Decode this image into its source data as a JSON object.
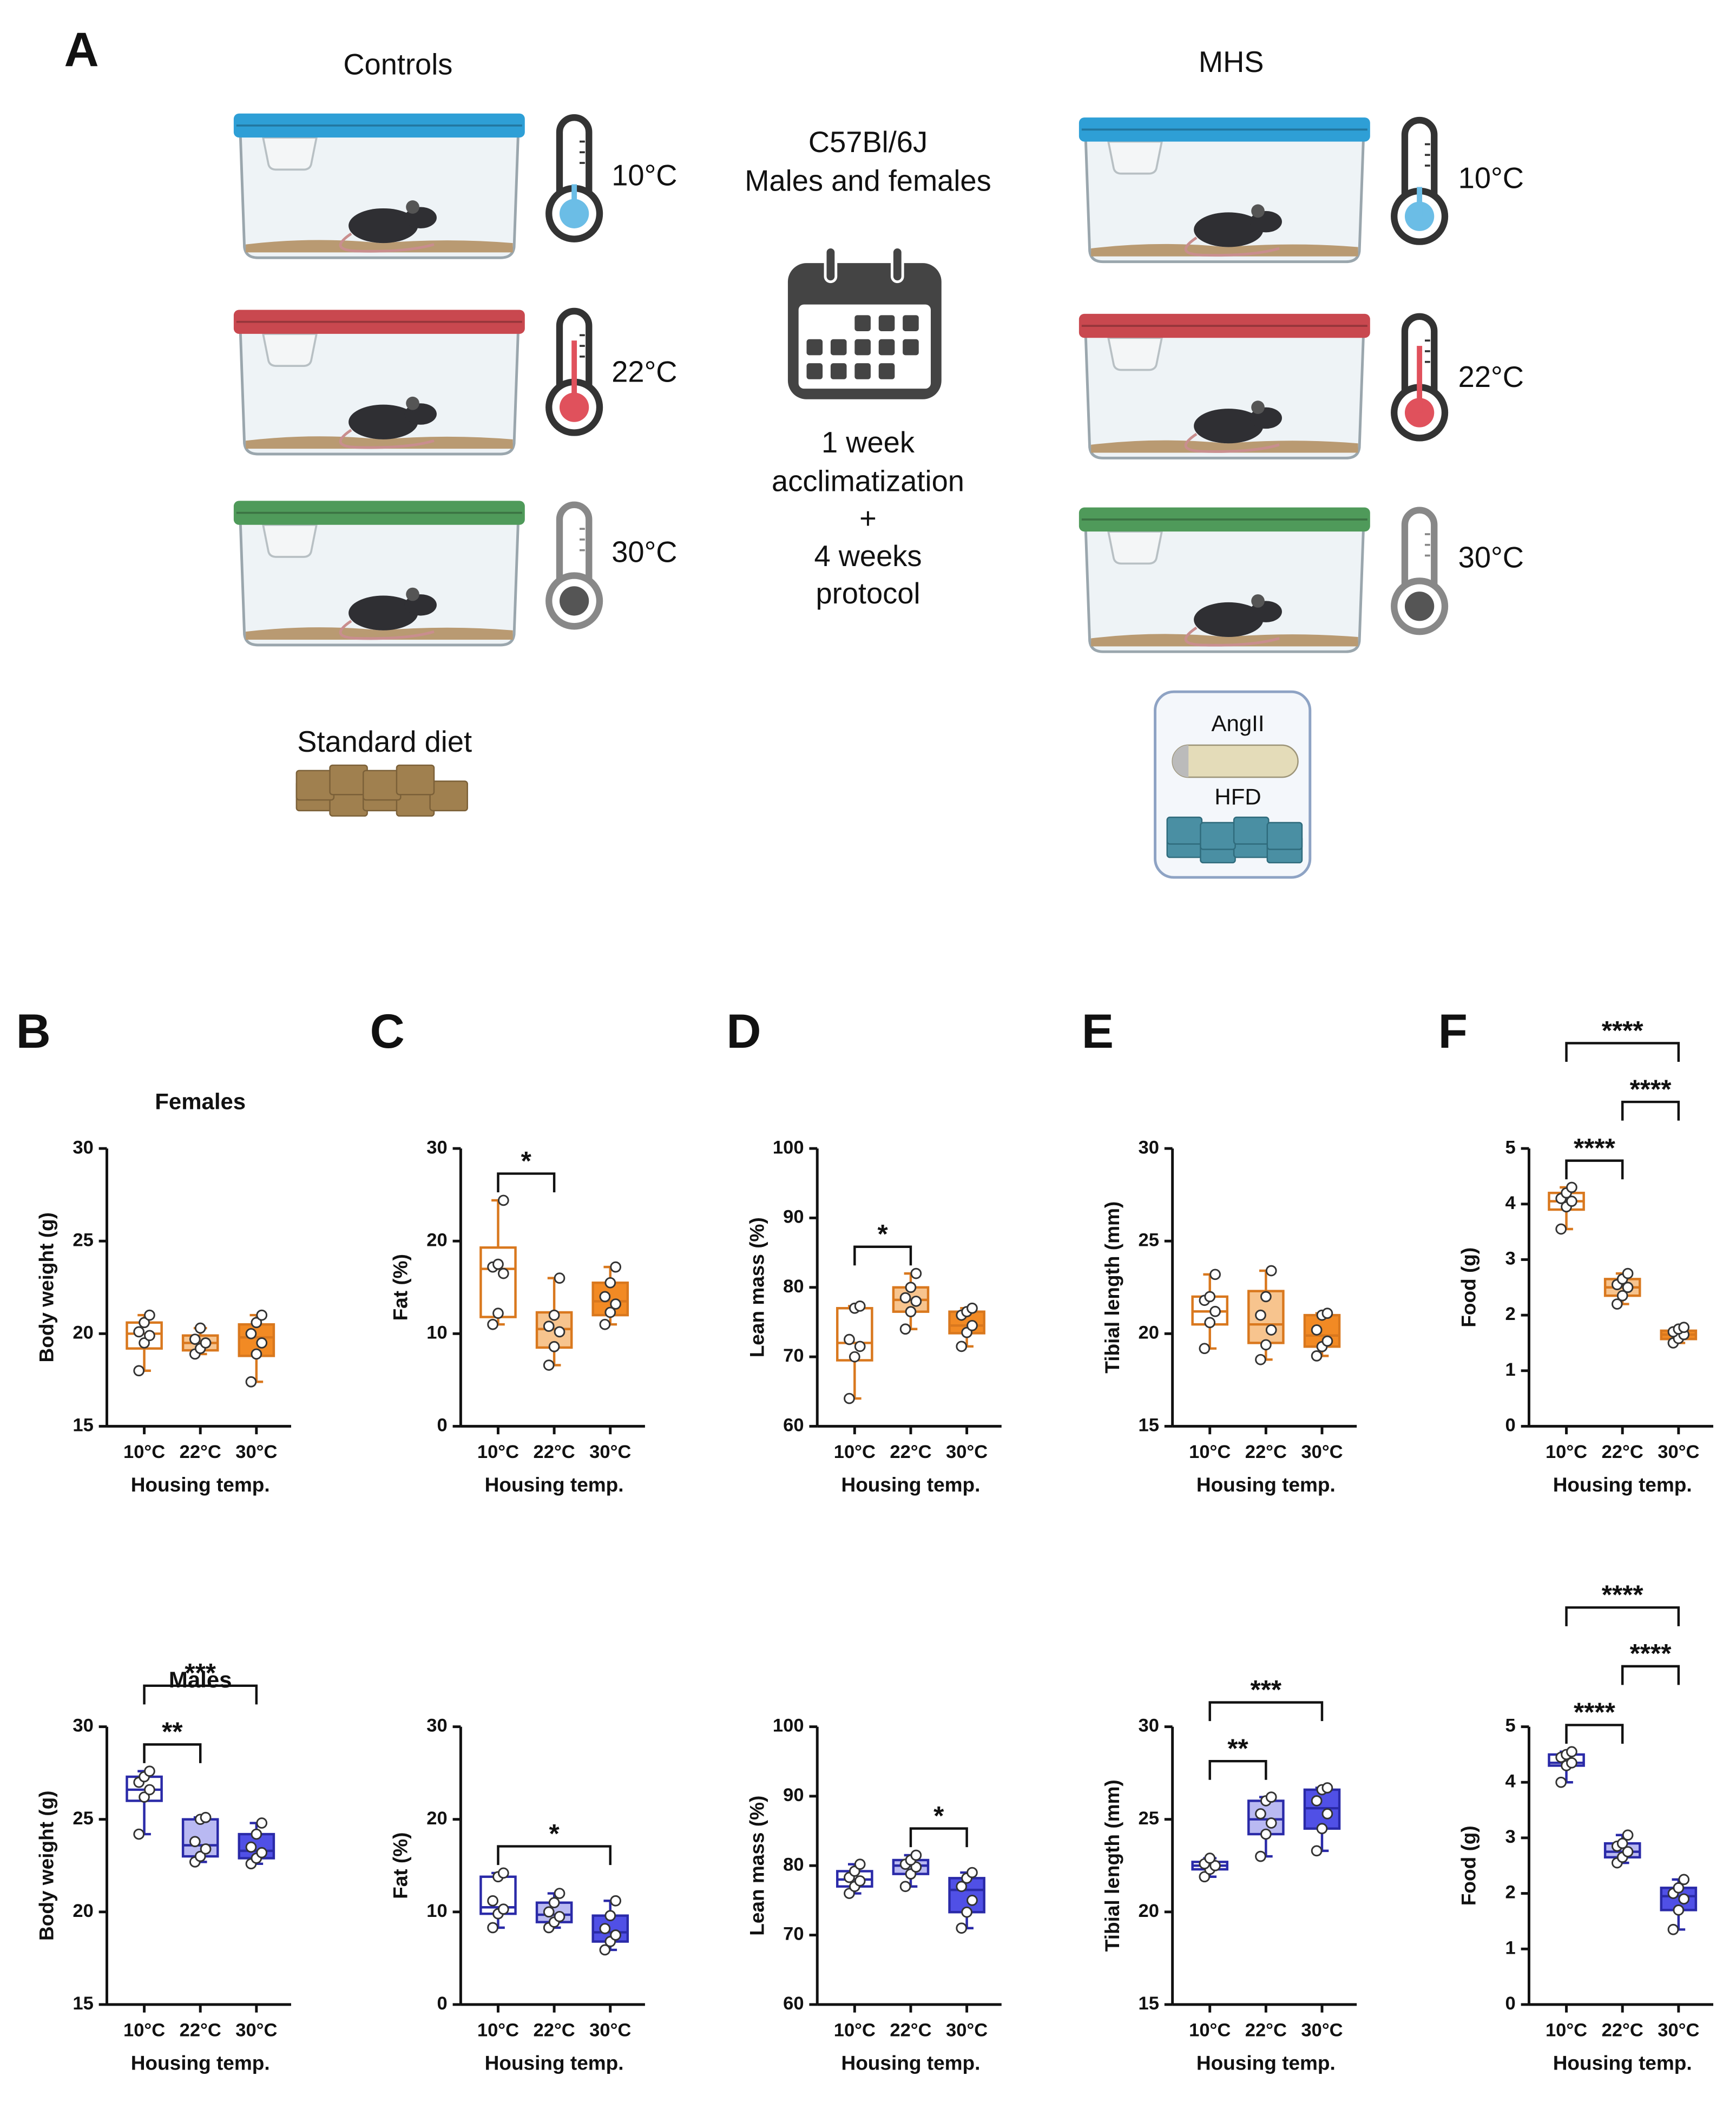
{
  "panel_a": {
    "label": "A",
    "controls": {
      "title": "Controls",
      "temperatures": [
        "10°C",
        "22°C",
        "30°C"
      ],
      "diet": "Standard diet"
    },
    "mhs": {
      "title": "MHS",
      "temperatures": [
        "10°C",
        "22°C",
        "30°C"
      ],
      "treatments": [
        "AngII",
        "HFD"
      ]
    },
    "protocol": {
      "strain": "C57Bl/6J",
      "sexes": "Males and females",
      "duration": [
        "1 week",
        "acclimatization",
        "+",
        "4 weeks",
        "protocol"
      ]
    }
  },
  "chart_data": [
    {
      "type": "box",
      "panel": "B",
      "title": "Females",
      "ylabel": "Body weight (g)",
      "xlabel": "Housing temp.",
      "categories": [
        "10°C",
        "22°C",
        "30°C"
      ],
      "ylim": [
        15,
        30
      ],
      "yticks": [
        15,
        20,
        25,
        30
      ],
      "boxes": [
        {
          "color": "#d9781e",
          "fill": "#ffffff",
          "min": 18,
          "q1": 19.2,
          "median": 20,
          "q3": 20.6,
          "max": 21,
          "points": [
            18,
            19.5,
            19.9,
            20.1,
            20.6,
            21
          ]
        },
        {
          "color": "#d9781e",
          "fill": "#f7c48e",
          "min": 18.9,
          "q1": 19.1,
          "median": 19.5,
          "q3": 19.9,
          "max": 20.3,
          "points": [
            18.9,
            19.2,
            19.5,
            19.7,
            20.3
          ]
        },
        {
          "color": "#d9781e",
          "fill": "#f28a24",
          "min": 17.4,
          "q1": 18.8,
          "median": 19.8,
          "q3": 20.5,
          "max": 21,
          "points": [
            17.4,
            18.9,
            19.5,
            20,
            20.6,
            21
          ]
        }
      ],
      "comparisons": []
    },
    {
      "type": "box",
      "panel": "C",
      "ylabel": "Fat (%)",
      "xlabel": "Housing temp.",
      "categories": [
        "10°C",
        "22°C",
        "30°C"
      ],
      "ylim": [
        0,
        30
      ],
      "yticks": [
        0,
        10,
        20,
        30
      ],
      "boxes": [
        {
          "color": "#d9781e",
          "fill": "#ffffff",
          "min": 11,
          "q1": 11.8,
          "median": 17,
          "q3": 19.3,
          "max": 24.4,
          "points": [
            11,
            12.2,
            16.5,
            17.2,
            17.5,
            24.4
          ]
        },
        {
          "color": "#d9781e",
          "fill": "#f7c48e",
          "min": 6.6,
          "q1": 8.5,
          "median": 10.5,
          "q3": 12.3,
          "max": 16,
          "points": [
            6.6,
            8.6,
            10.2,
            10.8,
            12,
            16
          ]
        },
        {
          "color": "#d9781e",
          "fill": "#f28a24",
          "min": 11,
          "q1": 12,
          "median": 13.5,
          "q3": 15.5,
          "max": 17.2,
          "points": [
            11,
            12.3,
            13.2,
            14,
            15.5,
            17.2
          ]
        }
      ],
      "comparisons": [
        {
          "groups": [
            0,
            1
          ],
          "label": "*"
        }
      ]
    },
    {
      "type": "box",
      "panel": "D",
      "ylabel": "Lean mass (%)",
      "xlabel": "Housing temp.",
      "categories": [
        "10°C",
        "22°C",
        "30°C"
      ],
      "ylim": [
        60,
        100
      ],
      "yticks": [
        60,
        70,
        80,
        90,
        100
      ],
      "boxes": [
        {
          "color": "#d9781e",
          "fill": "#ffffff",
          "min": 64,
          "q1": 69.5,
          "median": 72,
          "q3": 77,
          "max": 77.3,
          "points": [
            64,
            70,
            71.5,
            72.5,
            77,
            77.3
          ]
        },
        {
          "color": "#d9781e",
          "fill": "#f7c48e",
          "min": 74,
          "q1": 76.5,
          "median": 78.2,
          "q3": 80,
          "max": 82,
          "points": [
            74,
            76.5,
            78,
            78.5,
            80,
            82
          ]
        },
        {
          "color": "#d9781e",
          "fill": "#f28a24",
          "min": 71.5,
          "q1": 73.4,
          "median": 74.5,
          "q3": 76.5,
          "max": 77,
          "points": [
            71.5,
            73.5,
            74.5,
            76,
            76.5,
            77
          ]
        }
      ],
      "comparisons": [
        {
          "groups": [
            0,
            1
          ],
          "label": "*"
        }
      ]
    },
    {
      "type": "box",
      "panel": "E",
      "ylabel": "Tibial length (mm)",
      "xlabel": "Housing temp.",
      "categories": [
        "10°C",
        "22°C",
        "30°C"
      ],
      "ylim": [
        15,
        30
      ],
      "yticks": [
        15,
        20,
        25,
        30
      ],
      "boxes": [
        {
          "color": "#d9781e",
          "fill": "#ffffff",
          "min": 19.2,
          "q1": 20.5,
          "median": 21.2,
          "q3": 22,
          "max": 23.2,
          "points": [
            19.2,
            20.6,
            21.2,
            21.8,
            22,
            23.2
          ]
        },
        {
          "color": "#d9781e",
          "fill": "#f7c48e",
          "min": 18.6,
          "q1": 19.5,
          "median": 20.5,
          "q3": 22.3,
          "max": 23.4,
          "points": [
            18.6,
            19.4,
            20.2,
            21,
            22,
            23.4
          ]
        },
        {
          "color": "#d9781e",
          "fill": "#f28a24",
          "min": 18.8,
          "q1": 19.3,
          "median": 19.9,
          "q3": 21,
          "max": 21.1,
          "points": [
            18.8,
            19.3,
            19.6,
            20.2,
            21,
            21.1
          ]
        }
      ],
      "comparisons": []
    },
    {
      "type": "box",
      "panel": "F",
      "ylabel": "Food  (g)",
      "xlabel": "Housing temp.",
      "categories": [
        "10°C",
        "22°C",
        "30°C"
      ],
      "ylim": [
        0,
        5
      ],
      "yticks": [
        0,
        1,
        2,
        3,
        4,
        5
      ],
      "boxes": [
        {
          "color": "#d9781e",
          "fill": "#ffffff",
          "min": 3.55,
          "q1": 3.9,
          "median": 4.05,
          "q3": 4.2,
          "max": 4.3,
          "points": [
            3.55,
            3.95,
            4.05,
            4.1,
            4.2,
            4.3
          ]
        },
        {
          "color": "#d9781e",
          "fill": "#f7c48e",
          "min": 2.2,
          "q1": 2.35,
          "median": 2.5,
          "q3": 2.65,
          "max": 2.75,
          "points": [
            2.2,
            2.35,
            2.5,
            2.55,
            2.65,
            2.75
          ]
        },
        {
          "color": "#d9781e",
          "fill": "#f28a24",
          "min": 1.5,
          "q1": 1.57,
          "median": 1.65,
          "q3": 1.72,
          "max": 1.78,
          "points": [
            1.5,
            1.58,
            1.65,
            1.7,
            1.75,
            1.78
          ]
        }
      ],
      "comparisons": [
        {
          "groups": [
            0,
            1
          ],
          "label": "****"
        },
        {
          "groups": [
            1,
            2
          ],
          "label": "****"
        },
        {
          "groups": [
            0,
            2
          ],
          "label": "****"
        }
      ]
    },
    {
      "type": "box",
      "title": "Males",
      "ylabel": "Body weight (g)",
      "xlabel": "Housing temp.",
      "categories": [
        "10°C",
        "22°C",
        "30°C"
      ],
      "ylim": [
        15,
        30
      ],
      "yticks": [
        15,
        20,
        25,
        30
      ],
      "boxes": [
        {
          "color": "#2a2aa8",
          "fill": "#ffffff",
          "min": 24.2,
          "q1": 26,
          "median": 26.6,
          "q3": 27.3,
          "max": 27.6,
          "points": [
            24.2,
            26.2,
            26.6,
            27,
            27.3,
            27.6
          ]
        },
        {
          "color": "#2a2aa8",
          "fill": "#b9b9f2",
          "min": 22.7,
          "q1": 23,
          "median": 23.6,
          "q3": 25,
          "max": 25.1,
          "points": [
            22.7,
            23,
            23.4,
            23.8,
            25,
            25.1
          ]
        },
        {
          "color": "#2a2aa8",
          "fill": "#5050e6",
          "min": 22.6,
          "q1": 22.9,
          "median": 23.3,
          "q3": 24.2,
          "max": 24.8,
          "points": [
            22.6,
            22.9,
            23.2,
            23.5,
            24.2,
            24.8
          ]
        }
      ],
      "comparisons": [
        {
          "groups": [
            0,
            1
          ],
          "label": "**"
        },
        {
          "groups": [
            0,
            2
          ],
          "label": "***"
        }
      ]
    },
    {
      "type": "box",
      "ylabel": "Fat (%)",
      "xlabel": "Housing temp.",
      "categories": [
        "10°C",
        "22°C",
        "30°C"
      ],
      "ylim": [
        0,
        30
      ],
      "yticks": [
        0,
        10,
        20,
        30
      ],
      "boxes": [
        {
          "color": "#2a2aa8",
          "fill": "#ffffff",
          "min": 8.3,
          "q1": 9.8,
          "median": 10.5,
          "q3": 13.8,
          "max": 14.2,
          "points": [
            8.3,
            9.8,
            10.3,
            11.2,
            13.8,
            14.2
          ]
        },
        {
          "color": "#2a2aa8",
          "fill": "#b9b9f2",
          "min": 8.3,
          "q1": 8.9,
          "median": 9.7,
          "q3": 11,
          "max": 12,
          "points": [
            8.3,
            8.9,
            9.5,
            10,
            11,
            12
          ]
        },
        {
          "color": "#2a2aa8",
          "fill": "#5050e6",
          "min": 5.9,
          "q1": 6.8,
          "median": 7.8,
          "q3": 9.6,
          "max": 11.2,
          "points": [
            5.9,
            6.8,
            7.5,
            8.2,
            9.6,
            11.2
          ]
        }
      ],
      "comparisons": [
        {
          "groups": [
            0,
            2
          ],
          "label": "*"
        }
      ]
    },
    {
      "type": "box",
      "ylabel": "Lean mass (%)",
      "xlabel": "Housing temp.",
      "categories": [
        "10°C",
        "22°C",
        "30°C"
      ],
      "ylim": [
        60,
        100
      ],
      "yticks": [
        60,
        70,
        80,
        90,
        100
      ],
      "boxes": [
        {
          "color": "#2a2aa8",
          "fill": "#ffffff",
          "min": 76,
          "q1": 77,
          "median": 78,
          "q3": 79.2,
          "max": 80.2,
          "points": [
            76,
            77,
            77.8,
            78.3,
            79.2,
            80.2
          ]
        },
        {
          "color": "#2a2aa8",
          "fill": "#b9b9f2",
          "min": 77,
          "q1": 78.8,
          "median": 80,
          "q3": 80.8,
          "max": 81.5,
          "points": [
            77,
            78.8,
            79.8,
            80.2,
            80.8,
            81.5
          ]
        },
        {
          "color": "#2a2aa8",
          "fill": "#5050e6",
          "min": 71,
          "q1": 73.3,
          "median": 76.5,
          "q3": 78.2,
          "max": 79,
          "points": [
            71,
            73.3,
            75,
            77,
            78.2,
            79
          ]
        }
      ],
      "comparisons": [
        {
          "groups": [
            1,
            2
          ],
          "label": "*"
        }
      ]
    },
    {
      "type": "box",
      "ylabel": "Tibial length (mm)",
      "xlabel": "Housing temp.",
      "categories": [
        "10°C",
        "22°C",
        "30°C"
      ],
      "ylim": [
        15,
        30
      ],
      "yticks": [
        15,
        20,
        25,
        30
      ],
      "boxes": [
        {
          "color": "#2a2aa8",
          "fill": "#ffffff",
          "min": 21.9,
          "q1": 22.3,
          "median": 22.5,
          "q3": 22.7,
          "max": 22.9,
          "points": [
            21.9,
            22.3,
            22.5,
            22.6,
            22.9
          ]
        },
        {
          "color": "#2a2aa8",
          "fill": "#b9b9f2",
          "min": 23,
          "q1": 24.2,
          "median": 25,
          "q3": 26,
          "max": 26.2,
          "points": [
            23,
            24.2,
            24.8,
            25.3,
            26,
            26.2
          ]
        },
        {
          "color": "#2a2aa8",
          "fill": "#5050e6",
          "min": 23.3,
          "q1": 24.5,
          "median": 25.6,
          "q3": 26.6,
          "max": 26.7,
          "points": [
            23.3,
            24.5,
            25.3,
            26,
            26.6,
            26.7
          ]
        }
      ],
      "comparisons": [
        {
          "groups": [
            0,
            1
          ],
          "label": "**"
        },
        {
          "groups": [
            0,
            2
          ],
          "label": "***"
        }
      ]
    },
    {
      "type": "box",
      "ylabel": "Food  (g)",
      "xlabel": "Housing temp.",
      "categories": [
        "10°C",
        "22°C",
        "30°C"
      ],
      "ylim": [
        0,
        5
      ],
      "yticks": [
        0,
        1,
        2,
        3,
        4,
        5
      ],
      "boxes": [
        {
          "color": "#2a2aa8",
          "fill": "#ffffff",
          "min": 4,
          "q1": 4.3,
          "median": 4.35,
          "q3": 4.5,
          "max": 4.55,
          "points": [
            4,
            4.3,
            4.35,
            4.45,
            4.5,
            4.55
          ]
        },
        {
          "color": "#2a2aa8",
          "fill": "#b9b9f2",
          "min": 2.55,
          "q1": 2.65,
          "median": 2.75,
          "q3": 2.9,
          "max": 3.05,
          "points": [
            2.55,
            2.65,
            2.75,
            2.85,
            2.9,
            3.05
          ]
        },
        {
          "color": "#2a2aa8",
          "fill": "#5050e6",
          "min": 1.35,
          "q1": 1.7,
          "median": 1.95,
          "q3": 2.1,
          "max": 2.25,
          "points": [
            1.35,
            1.7,
            1.9,
            2,
            2.1,
            2.25
          ]
        }
      ],
      "comparisons": [
        {
          "groups": [
            0,
            1
          ],
          "label": "****"
        },
        {
          "groups": [
            1,
            2
          ],
          "label": "****"
        },
        {
          "groups": [
            0,
            2
          ],
          "label": "****"
        }
      ]
    }
  ]
}
